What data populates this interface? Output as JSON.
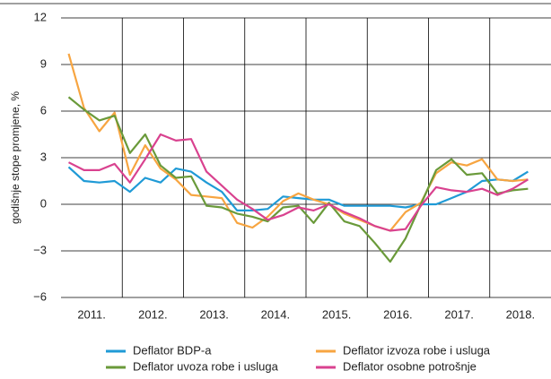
{
  "chart_data": {
    "type": "line",
    "y_label": "godišnje stope promjene, %",
    "categories": [
      null,
      "2011.",
      null,
      null,
      null,
      "2012.",
      null,
      null,
      null,
      "2013.",
      null,
      null,
      null,
      "2014.",
      null,
      null,
      null,
      "2015.",
      null,
      null,
      null,
      "2016.",
      null,
      null,
      null,
      "2017.",
      null,
      null,
      null,
      "2018.",
      null
    ],
    "series": [
      {
        "name": "Deflator BDP-a",
        "color": "#1f9ad6",
        "values": [
          2.4,
          1.5,
          1.4,
          1.5,
          0.8,
          1.7,
          1.4,
          2.3,
          2.1,
          1.4,
          0.8,
          -0.4,
          -0.4,
          -0.3,
          0.5,
          0.4,
          0.3,
          0.3,
          -0.1,
          -0.1,
          -0.1,
          -0.1,
          -0.2,
          0.0,
          0.0,
          0.4,
          0.8,
          1.5,
          1.6,
          1.5,
          2.1
        ]
      },
      {
        "name": "Deflator izvoza robe i usluga",
        "color": "#f7a541",
        "values": [
          9.7,
          6.2,
          4.7,
          5.9,
          1.9,
          3.8,
          2.3,
          1.6,
          0.6,
          0.5,
          0.4,
          -1.2,
          -1.5,
          -0.8,
          0.2,
          0.7,
          0.3,
          0.0,
          -0.6,
          -1.0,
          -1.4,
          -1.7,
          -0.5,
          0.1,
          2.0,
          2.7,
          2.5,
          2.9,
          1.6,
          1.5,
          1.6
        ]
      },
      {
        "name": "Deflator uvoza robe i usluga",
        "color": "#6a9a3a",
        "values": [
          6.9,
          6.1,
          5.4,
          5.7,
          3.3,
          4.5,
          2.5,
          1.7,
          1.8,
          -0.1,
          -0.2,
          -0.6,
          -0.8,
          -1.1,
          -0.2,
          -0.1,
          -1.2,
          0.1,
          -1.1,
          -1.4,
          -2.5,
          -3.7,
          -2.2,
          0.0,
          2.2,
          2.9,
          1.9,
          2.0,
          0.7,
          0.9,
          1.0
        ]
      },
      {
        "name": "Deflator osobne potrošnje",
        "color": "#d9428f",
        "values": [
          2.7,
          2.2,
          2.2,
          2.6,
          1.4,
          2.9,
          4.5,
          4.1,
          4.2,
          2.1,
          1.2,
          0.3,
          -0.3,
          -1.0,
          -0.7,
          -0.2,
          -0.4,
          0.0,
          -0.5,
          -0.9,
          -1.4,
          -1.7,
          -1.6,
          -0.1,
          1.1,
          0.9,
          0.8,
          1.0,
          0.6,
          1.0,
          1.6
        ]
      }
    ],
    "ylim": [
      -6,
      12
    ],
    "yticks": [
      {
        "value": -6,
        "label": "−6"
      },
      {
        "value": -3,
        "label": "−3"
      },
      0,
      3,
      6,
      9,
      12
    ],
    "grid": true
  }
}
